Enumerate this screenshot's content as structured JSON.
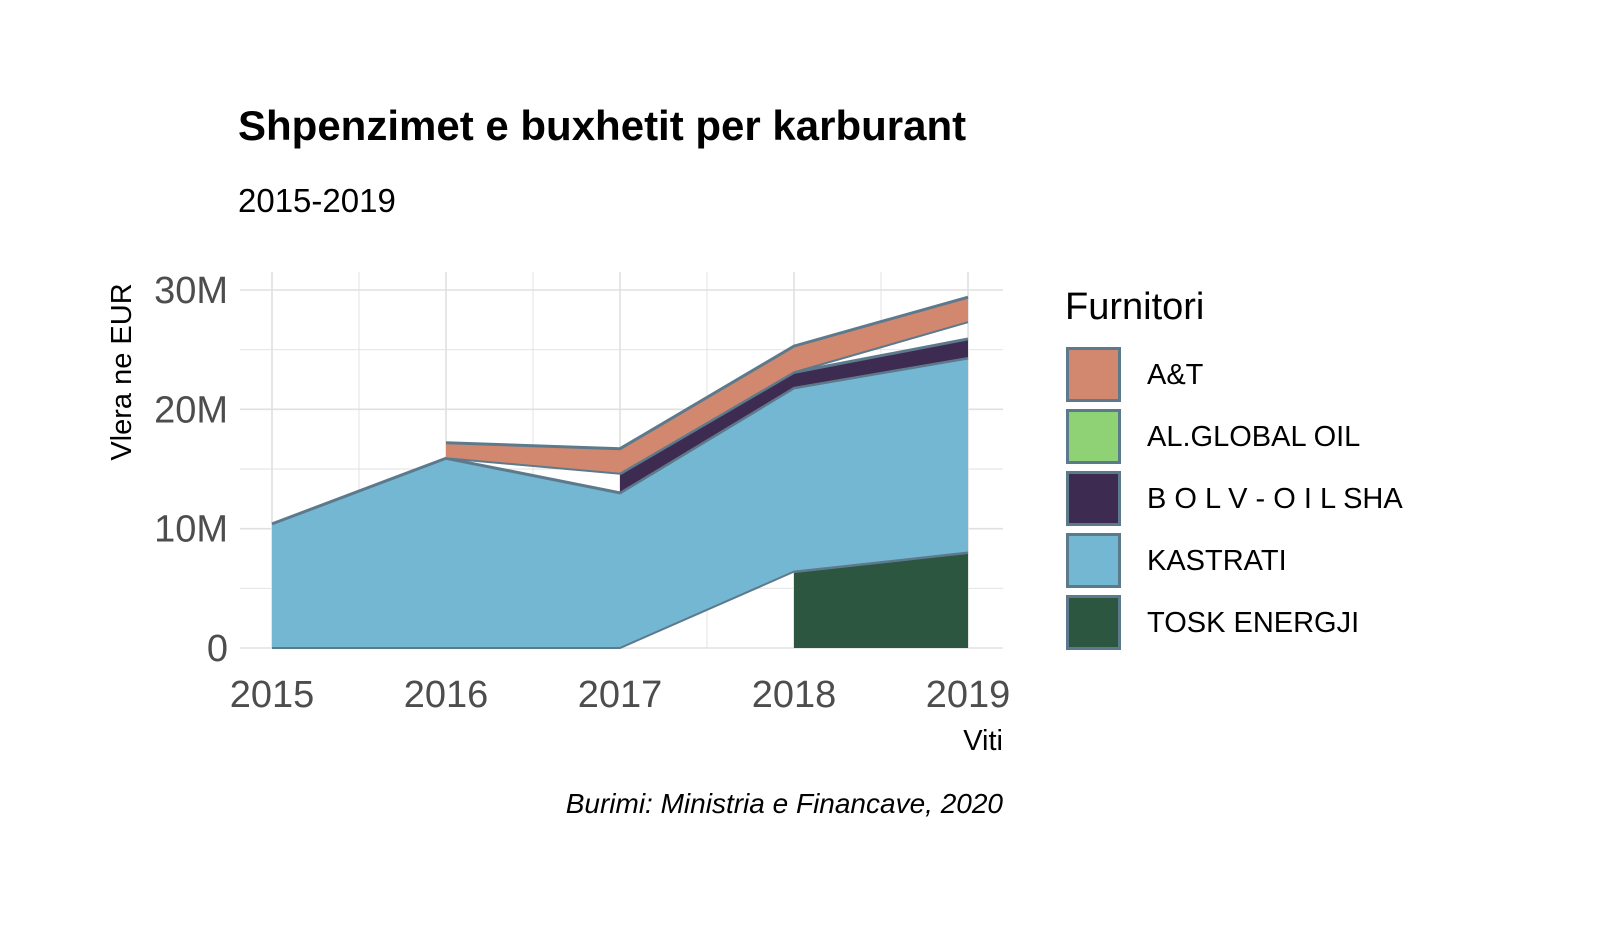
{
  "chart_data": {
    "type": "area",
    "stacked": true,
    "title": "Shpenzimet e buxhetit per karburant",
    "subtitle": "2015-2019",
    "caption": "Burimi: Ministria e Financave, 2020",
    "xlabel": "Viti",
    "ylabel": "Vlera ne EUR",
    "x": [
      2015,
      2016,
      2017,
      2018,
      2019
    ],
    "x_tick_labels": [
      "2015",
      "2016",
      "2017",
      "2018",
      "2019"
    ],
    "ylim": [
      0,
      30000000
    ],
    "y_ticks": [
      0,
      10000000,
      20000000,
      30000000
    ],
    "y_tick_labels": [
      "0",
      "10M",
      "20M",
      "30M"
    ],
    "grid": true,
    "legend_title": "Furnitori",
    "legend_position": "right",
    "outline_color": "#5d7a8c",
    "series": [
      {
        "name": "A&T",
        "color": "#d2876f",
        "values": [
          null,
          1300000,
          2100000,
          2200000,
          2100000
        ]
      },
      {
        "name": "AL.GLOBAL OIL",
        "color": "#8fd175",
        "values": [
          null,
          null,
          null,
          null,
          1400000
        ]
      },
      {
        "name": "B O L V - O I L SHA",
        "color": "#3d2b52",
        "values": [
          null,
          null,
          1600000,
          1300000,
          1600000
        ]
      },
      {
        "name": "KASTRATI",
        "color": "#74b7d3",
        "values": [
          10400000,
          15900000,
          13000000,
          15400000,
          16300000
        ]
      },
      {
        "name": "TOSK ENERGJI",
        "color": "#2c5640",
        "values": [
          null,
          null,
          null,
          6400000,
          8000000
        ]
      }
    ]
  }
}
